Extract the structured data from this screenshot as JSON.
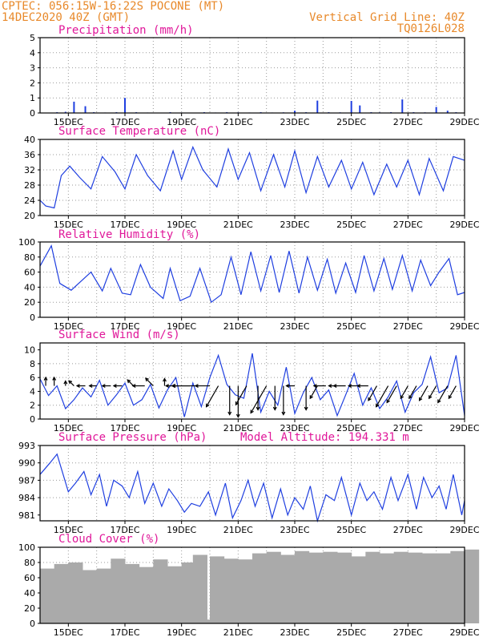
{
  "header": {
    "line1": "CPTEC:  056:15W-16:22S  POCONE (MT)",
    "line2": "14DEC2020 40Z (GMT)",
    "right1": "Vertical Grid Line: 40Z",
    "right2": "TQ0126L028",
    "color": "#e8892a"
  },
  "colors": {
    "title": "#e0189a",
    "line": "#1f3fe0",
    "cloud": "#aaaaaa",
    "arrow": "#000000"
  },
  "chart_data": [
    {
      "type": "bar",
      "title": "Precipitation (mm/h)",
      "x_day_labels": [
        "15DEC",
        "17DEC",
        "19DEC",
        "21DEC",
        "23DEC",
        "25DEC",
        "27DEC",
        "29DEC"
      ],
      "x_range_days": [
        14.0,
        29.0
      ],
      "ylim": [
        0,
        5
      ],
      "yticks": [
        0,
        1,
        2,
        3,
        4,
        5
      ],
      "grid": true,
      "x": [
        14.6,
        14.9,
        15.2,
        15.6,
        15.9,
        16.3,
        16.7,
        17.0,
        17.4,
        17.8,
        18.2,
        18.6,
        19.0,
        19.4,
        19.8,
        20.2,
        20.6,
        21.0,
        21.4,
        21.8,
        22.2,
        22.6,
        23.0,
        23.4,
        23.8,
        24.2,
        24.6,
        25.0,
        25.3,
        25.7,
        26.0,
        26.4,
        26.8,
        27.2,
        27.6,
        28.0,
        28.4,
        28.7
      ],
      "y": [
        0.05,
        0.08,
        0.75,
        0.45,
        0.05,
        0.03,
        0.05,
        1.0,
        0.05,
        0.03,
        0.02,
        0.05,
        0.03,
        0.02,
        0.05,
        0.03,
        0.05,
        0.04,
        0.03,
        0.05,
        0.03,
        0.04,
        0.15,
        0.05,
        0.82,
        0.05,
        0.04,
        0.8,
        0.5,
        0.05,
        0.04,
        0.05,
        0.9,
        0.05,
        0.04,
        0.4,
        0.15,
        0.05
      ]
    },
    {
      "type": "line",
      "title": "Surface Temperature (nC)",
      "x_day_labels": [
        "15DEC",
        "17DEC",
        "19DEC",
        "21DEC",
        "23DEC",
        "25DEC",
        "27DEC",
        "29DEC"
      ],
      "x_range_days": [
        14.0,
        29.0
      ],
      "ylim": [
        20,
        40
      ],
      "yticks": [
        20,
        24,
        28,
        32,
        36,
        40
      ],
      "grid": true,
      "x": [
        14.0,
        14.2,
        14.5,
        14.75,
        15.05,
        15.4,
        15.8,
        16.2,
        16.65,
        17.0,
        17.4,
        17.8,
        18.25,
        18.7,
        19.0,
        19.4,
        19.75,
        20.25,
        20.65,
        21.0,
        21.4,
        21.8,
        22.25,
        22.65,
        23.0,
        23.4,
        23.8,
        24.2,
        24.65,
        25.0,
        25.4,
        25.8,
        26.25,
        26.6,
        27.0,
        27.4,
        27.75,
        28.25,
        28.6,
        29.0
      ],
      "y": [
        24.0,
        22.5,
        22.0,
        30.5,
        33.0,
        30.0,
        27.0,
        35.5,
        31.5,
        27.0,
        36.0,
        30.5,
        26.5,
        37.0,
        29.5,
        38.0,
        32.0,
        27.5,
        37.5,
        29.5,
        36.5,
        26.5,
        36.0,
        27.5,
        37.0,
        26.0,
        35.5,
        27.5,
        34.5,
        27.0,
        34.0,
        25.5,
        33.5,
        27.5,
        34.5,
        25.5,
        35.0,
        26.5,
        35.5,
        34.5
      ]
    },
    {
      "type": "line",
      "title": "Relative Humidity (%)",
      "x_day_labels": [
        "15DEC",
        "17DEC",
        "19DEC",
        "21DEC",
        "23DEC",
        "25DEC",
        "27DEC",
        "29DEC"
      ],
      "x_range_days": [
        14.0,
        29.0
      ],
      "ylim": [
        0,
        100
      ],
      "yticks": [
        0,
        20,
        40,
        60,
        80,
        100
      ],
      "grid": true,
      "x": [
        14.0,
        14.4,
        14.7,
        15.1,
        15.45,
        15.8,
        16.2,
        16.5,
        16.9,
        17.2,
        17.55,
        17.9,
        18.35,
        18.6,
        18.95,
        19.3,
        19.65,
        20.05,
        20.4,
        20.75,
        21.1,
        21.45,
        21.8,
        22.15,
        22.45,
        22.8,
        23.15,
        23.45,
        23.8,
        24.15,
        24.45,
        24.8,
        25.15,
        25.45,
        25.8,
        26.15,
        26.45,
        26.8,
        27.15,
        27.45,
        27.8,
        28.1,
        28.45,
        28.75,
        29.0
      ],
      "y": [
        68.0,
        95.0,
        45.0,
        36.0,
        48.0,
        60.0,
        35.0,
        65.0,
        32.0,
        30.0,
        70.0,
        40.0,
        25.0,
        65.0,
        22.0,
        28.0,
        65.0,
        20.0,
        30.0,
        80.0,
        30.0,
        87.0,
        35.0,
        82.0,
        33.0,
        88.0,
        32.0,
        80.0,
        36.0,
        77.0,
        32.0,
        72.0,
        33.0,
        82.0,
        35.0,
        78.0,
        37.0,
        82.0,
        35.0,
        76.0,
        42.0,
        60.0,
        78.0,
        30.0,
        33.0
      ]
    },
    {
      "type": "line",
      "title": "Surface Wind (m/s)",
      "x_day_labels": [
        "15DEC",
        "17DEC",
        "19DEC",
        "21DEC",
        "23DEC",
        "25DEC",
        "27DEC",
        "29DEC"
      ],
      "x_range_days": [
        14.0,
        29.0
      ],
      "ylim": [
        0,
        11
      ],
      "yticks": [
        0,
        2,
        4,
        6,
        8,
        10
      ],
      "grid": true,
      "x": [
        14.0,
        14.3,
        14.6,
        14.9,
        15.2,
        15.5,
        15.8,
        16.1,
        16.4,
        16.7,
        17.0,
        17.3,
        17.6,
        17.9,
        18.2,
        18.5,
        18.8,
        19.1,
        19.4,
        19.7,
        20.0,
        20.3,
        20.6,
        20.9,
        21.2,
        21.5,
        21.8,
        22.1,
        22.4,
        22.7,
        23.0,
        23.3,
        23.6,
        23.9,
        24.2,
        24.5,
        24.8,
        25.1,
        25.4,
        25.7,
        26.0,
        26.3,
        26.6,
        26.9,
        27.2,
        27.5,
        27.8,
        28.1,
        28.4,
        28.7,
        29.0
      ],
      "y": [
        5.8,
        3.4,
        4.8,
        1.5,
        2.8,
        4.5,
        3.2,
        5.6,
        2.0,
        3.5,
        5.2,
        2.0,
        2.8,
        5.0,
        1.6,
        4.2,
        6.0,
        0.3,
        5.2,
        1.8,
        6.0,
        9.2,
        5.0,
        3.5,
        3.0,
        9.5,
        1.0,
        4.0,
        2.0,
        7.5,
        0.8,
        3.8,
        6.0,
        2.8,
        4.2,
        0.5,
        3.5,
        6.6,
        2.0,
        4.5,
        1.5,
        3.2,
        5.5,
        1.0,
        3.8,
        5.0,
        9.0,
        3.8,
        4.5,
        9.2,
        0.5
      ],
      "arrows": [
        {
          "x": 14.2,
          "dir": "up",
          "len": 0.35
        },
        {
          "x": 14.5,
          "dir": "up",
          "len": 0.35
        },
        {
          "x": 14.9,
          "dir": "up",
          "len": 0.2
        },
        {
          "x": 15.2,
          "dir": "up-left",
          "len": 0.3
        },
        {
          "x": 15.6,
          "dir": "left",
          "len": 0.35
        },
        {
          "x": 16.0,
          "dir": "left",
          "len": 0.3
        },
        {
          "x": 16.5,
          "dir": "left",
          "len": 0.35
        },
        {
          "x": 16.9,
          "dir": "left",
          "len": 0.35
        },
        {
          "x": 17.3,
          "dir": "up-left",
          "len": 0.35
        },
        {
          "x": 17.7,
          "dir": "left",
          "len": 0.5
        },
        {
          "x": 18.0,
          "dir": "up-left",
          "len": 0.45
        },
        {
          "x": 18.4,
          "dir": "up",
          "len": 0.3
        },
        {
          "x": 18.9,
          "dir": "left",
          "len": 0.25
        },
        {
          "x": 19.3,
          "dir": "left",
          "len": 1.0
        },
        {
          "x": 19.6,
          "dir": "left",
          "len": 1.1
        },
        {
          "x": 20.0,
          "dir": "left",
          "len": 0.6
        },
        {
          "x": 20.3,
          "dir": "down-left",
          "len": 1.0
        },
        {
          "x": 20.7,
          "dir": "down",
          "len": 1.2
        },
        {
          "x": 21.0,
          "dir": "down",
          "len": 1.3
        },
        {
          "x": 21.3,
          "dir": "down-left",
          "len": 0.9
        },
        {
          "x": 21.7,
          "dir": "down",
          "len": 1.0
        },
        {
          "x": 22.0,
          "dir": "down-left",
          "len": 1.3
        },
        {
          "x": 22.3,
          "dir": "down",
          "len": 1.0
        },
        {
          "x": 22.6,
          "dir": "down",
          "len": 1.2
        },
        {
          "x": 23.0,
          "dir": "left",
          "len": 0.35
        },
        {
          "x": 23.4,
          "dir": "down",
          "len": 1.0
        },
        {
          "x": 23.8,
          "dir": "down-left",
          "len": 0.6
        },
        {
          "x": 24.1,
          "dir": "left",
          "len": 0.5
        },
        {
          "x": 24.5,
          "dir": "left",
          "len": 0.35
        },
        {
          "x": 24.8,
          "dir": "left",
          "len": 0.5
        },
        {
          "x": 25.2,
          "dir": "left",
          "len": 0.35
        },
        {
          "x": 25.6,
          "dir": "left",
          "len": 0.45
        },
        {
          "x": 25.9,
          "dir": "down-left",
          "len": 0.7
        },
        {
          "x": 26.3,
          "dir": "down-left",
          "len": 1.0
        },
        {
          "x": 26.6,
          "dir": "down-left",
          "len": 0.8
        },
        {
          "x": 27.0,
          "dir": "down-left",
          "len": 0.6
        },
        {
          "x": 27.3,
          "dir": "down-left",
          "len": 0.6
        },
        {
          "x": 27.7,
          "dir": "down-left",
          "len": 0.7
        },
        {
          "x": 28.0,
          "dir": "down-left",
          "len": 0.6
        },
        {
          "x": 28.4,
          "dir": "down-left",
          "len": 0.8
        },
        {
          "x": 28.7,
          "dir": "down-left",
          "len": 0.6
        }
      ]
    },
    {
      "type": "line",
      "title": "Surface Pressure (hPa)",
      "subtitle": "Model Altitude: 194.331 m",
      "x_day_labels": [
        "15DEC",
        "17DEC",
        "19DEC",
        "21DEC",
        "23DEC",
        "25DEC",
        "27DEC",
        "29DEC"
      ],
      "x_range_days": [
        14.0,
        29.0
      ],
      "ylim": [
        980,
        993
      ],
      "yticks": [
        981,
        984,
        987,
        990,
        993
      ],
      "grid": true,
      "x": [
        14.0,
        14.35,
        14.6,
        15.0,
        15.25,
        15.55,
        15.8,
        16.1,
        16.35,
        16.6,
        16.9,
        17.15,
        17.45,
        17.7,
        18.0,
        18.3,
        18.55,
        18.85,
        19.1,
        19.35,
        19.65,
        19.95,
        20.2,
        20.55,
        20.8,
        21.1,
        21.35,
        21.6,
        21.9,
        22.2,
        22.5,
        22.75,
        23.0,
        23.3,
        23.55,
        23.8,
        24.1,
        24.4,
        24.65,
        25.0,
        25.3,
        25.55,
        25.8,
        26.1,
        26.4,
        26.65,
        27.0,
        27.3,
        27.55,
        27.85,
        28.1,
        28.35,
        28.6,
        28.9,
        29.0
      ],
      "y": [
        988.0,
        990.0,
        991.5,
        985.0,
        986.5,
        988.5,
        984.5,
        988.0,
        982.5,
        987.0,
        986.0,
        984.0,
        988.5,
        983.0,
        986.5,
        982.5,
        985.5,
        983.5,
        981.5,
        983.0,
        982.5,
        985.0,
        981.0,
        986.5,
        980.5,
        983.5,
        987.0,
        982.5,
        986.5,
        980.5,
        985.5,
        981.0,
        984.0,
        982.0,
        986.0,
        980.0,
        984.5,
        983.5,
        987.5,
        981.0,
        986.5,
        983.5,
        985.0,
        982.0,
        987.5,
        983.5,
        988.0,
        982.0,
        987.5,
        984.0,
        986.0,
        982.0,
        988.0,
        981.0,
        983.5
      ]
    },
    {
      "type": "bar",
      "title": "Cloud Cover (%)",
      "x_day_labels": [
        "15DEC",
        "17DEC",
        "19DEC",
        "21DEC",
        "23DEC",
        "25DEC",
        "27DEC",
        "29DEC"
      ],
      "x_range_days": [
        14.0,
        29.0
      ],
      "ylim": [
        0,
        100
      ],
      "yticks": [
        0,
        20,
        40,
        60,
        80,
        100
      ],
      "grid": true,
      "x": [
        14.0,
        14.5,
        15.0,
        15.5,
        16.0,
        16.5,
        17.0,
        17.5,
        18.0,
        18.5,
        19.0,
        19.4,
        19.6,
        20.0,
        20.5,
        21.0,
        21.5,
        22.0,
        22.5,
        23.0,
        23.5,
        24.0,
        24.5,
        25.0,
        25.5,
        26.0,
        26.5,
        27.0,
        27.5,
        28.0,
        28.5,
        29.0
      ],
      "y": [
        72,
        78,
        80,
        70,
        72,
        85,
        78,
        74,
        84,
        75,
        80,
        90,
        5,
        88,
        85,
        84,
        92,
        94,
        90,
        95,
        93,
        94,
        93,
        88,
        94,
        92,
        94,
        93,
        92,
        92,
        95,
        97
      ]
    }
  ]
}
